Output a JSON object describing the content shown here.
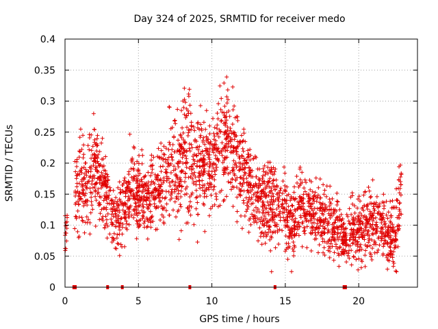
{
  "chart_data": {
    "type": "scatter",
    "title": "Day 324 of 2025, SRMTID for receiver medo",
    "xlabel": "GPS time / hours",
    "ylabel": "SRMTID / TECUs",
    "xlim": [
      0,
      24
    ],
    "ylim": [
      0,
      0.4
    ],
    "xticks": [
      0,
      5,
      10,
      15,
      20
    ],
    "xtick_labels": [
      "0",
      "5",
      "10",
      "15",
      "20"
    ],
    "yticks": [
      0,
      0.05,
      0.1,
      0.15,
      0.2,
      0.25,
      0.3,
      0.35,
      0.4
    ],
    "ytick_labels": [
      "0",
      "0.05",
      "0.1",
      "0.15",
      "0.2",
      "0.25",
      "0.3",
      "0.35",
      "0.4"
    ],
    "grid": true,
    "marker": "plus",
    "color": "#e00000",
    "zero_values_at_hours": [
      0.6,
      0.7,
      2.9,
      3.9,
      8.5,
      14.3,
      19.0,
      19.1
    ],
    "trend": {
      "hours": [
        0,
        0.5,
        1,
        1.5,
        2,
        2.5,
        3,
        3.5,
        4,
        4.5,
        5,
        5.5,
        6,
        6.5,
        7,
        7.5,
        8,
        8.5,
        9,
        9.5,
        10,
        10.5,
        11,
        11.5,
        12,
        12.5,
        13,
        13.5,
        14,
        14.5,
        15,
        15.5,
        16,
        16.5,
        17,
        17.5,
        18,
        18.5,
        19,
        19.5,
        20,
        20.5,
        21,
        21.5,
        22,
        22.5,
        22.9
      ],
      "center": [
        0.08,
        0.14,
        0.17,
        0.16,
        0.2,
        0.17,
        0.13,
        0.11,
        0.13,
        0.17,
        0.15,
        0.14,
        0.16,
        0.16,
        0.19,
        0.2,
        0.2,
        0.22,
        0.2,
        0.19,
        0.2,
        0.22,
        0.24,
        0.22,
        0.19,
        0.16,
        0.15,
        0.14,
        0.13,
        0.13,
        0.12,
        0.1,
        0.13,
        0.12,
        0.12,
        0.11,
        0.1,
        0.1,
        0.08,
        0.09,
        0.1,
        0.1,
        0.1,
        0.11,
        0.08,
        0.08,
        0.15
      ],
      "spread": [
        0.02,
        0.05,
        0.06,
        0.05,
        0.06,
        0.05,
        0.04,
        0.04,
        0.05,
        0.05,
        0.05,
        0.04,
        0.05,
        0.05,
        0.06,
        0.07,
        0.07,
        0.09,
        0.07,
        0.06,
        0.06,
        0.07,
        0.07,
        0.07,
        0.06,
        0.05,
        0.05,
        0.05,
        0.06,
        0.05,
        0.05,
        0.04,
        0.05,
        0.04,
        0.04,
        0.04,
        0.04,
        0.04,
        0.03,
        0.04,
        0.04,
        0.04,
        0.04,
        0.04,
        0.04,
        0.04,
        0.05
      ]
    }
  }
}
